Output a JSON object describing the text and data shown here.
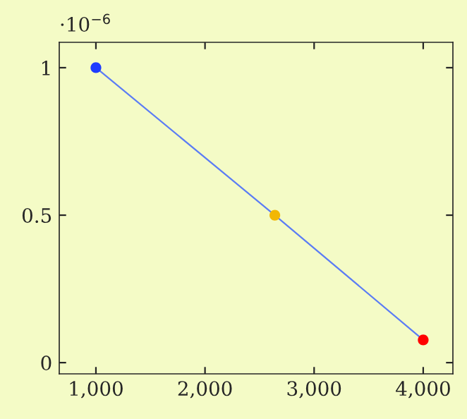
{
  "chart_data": {
    "type": "line",
    "x": [
      1000,
      2640,
      4000
    ],
    "series": [
      {
        "color": "#5b7cf5",
        "values": [
          1,
          0.5,
          0.077
        ],
        "colors": [
          "#1f3cff",
          "#f2b705",
          "#ff0000"
        ]
      }
    ],
    "marker": "circle",
    "xlim": [
      664,
      4272
    ],
    "xticks": [
      {
        "value": 1000,
        "label": "1,000"
      },
      {
        "value": 2000,
        "label": "2,000"
      },
      {
        "value": 3000,
        "label": "3,000"
      },
      {
        "value": 4000,
        "label": "4,000"
      }
    ],
    "ylim": [
      -0.038,
      1.086
    ],
    "yticks": [
      0,
      0.5,
      1
    ],
    "annotations": [
      "·10$^{−6}$"
    ],
    "grid": false,
    "legend": false
  }
}
